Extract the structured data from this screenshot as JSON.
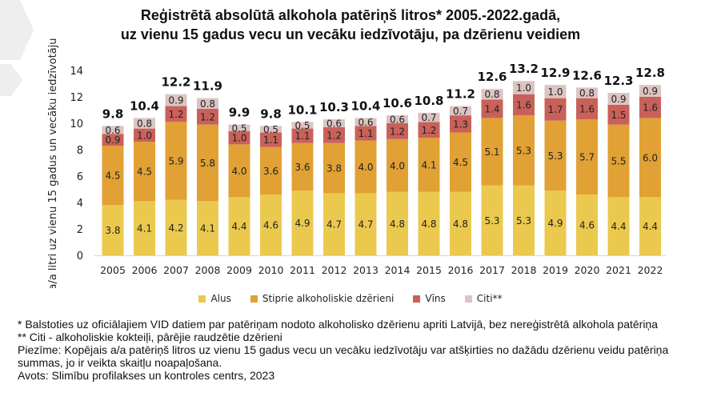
{
  "title_lines": [
    "Reģistrētā absolūtā alkohola patēriņš litros* 2005.-2022.gadā,",
    "uz vienu 15 gadus vecu un vecāku iedzīvotāju, pa dzērienu veidiem"
  ],
  "chart_data": {
    "type": "bar",
    "stacked": true,
    "title": "Reģistrētā absolūtā alkohola patēriņš litros* 2005.-2022.gadā, uz vienu 15 gadus vecu un vecāku iedzīvotāju, pa dzērienu veidiem",
    "xlabel": "",
    "ylabel": "a/a litri uz vienu 15 gadus un vecāku iedzīvotāju",
    "ylim": [
      0,
      14
    ],
    "yticks": [
      0,
      2,
      4,
      6,
      8,
      10,
      12,
      14
    ],
    "grid": false,
    "legend_position": "bottom",
    "categories": [
      "2005",
      "2006",
      "2007",
      "2008",
      "2009",
      "2010",
      "2011",
      "2012",
      "2013",
      "2014",
      "2015",
      "2016",
      "2017",
      "2018",
      "2019",
      "2020",
      "2021",
      "2022"
    ],
    "series": [
      {
        "name": "Alus",
        "color": "#ebc94f",
        "values": [
          3.8,
          4.1,
          4.2,
          4.1,
          4.4,
          4.6,
          4.9,
          4.7,
          4.7,
          4.8,
          4.8,
          4.8,
          5.3,
          5.3,
          4.9,
          4.6,
          4.4,
          4.4
        ]
      },
      {
        "name": "Stiprie alkoholiskie dzērieni",
        "color": "#e1a134",
        "values": [
          4.5,
          4.5,
          5.9,
          5.8,
          4.0,
          3.6,
          3.6,
          3.8,
          4.0,
          4.0,
          4.1,
          4.5,
          5.1,
          5.3,
          5.3,
          5.7,
          5.5,
          6.0
        ]
      },
      {
        "name": "Vīns",
        "color": "#c9615a",
        "values": [
          0.9,
          1.0,
          1.2,
          1.2,
          1.0,
          1.1,
          1.1,
          1.2,
          1.1,
          1.2,
          1.2,
          1.3,
          1.4,
          1.6,
          1.7,
          1.6,
          1.5,
          1.6
        ]
      },
      {
        "name": "Citi**",
        "color": "#dcc4c2",
        "values": [
          0.6,
          0.8,
          0.9,
          0.8,
          0.5,
          0.5,
          0.5,
          0.6,
          0.6,
          0.6,
          0.7,
          0.7,
          0.8,
          1.0,
          1.0,
          0.8,
          0.9,
          0.9
        ]
      }
    ],
    "totals": [
      9.8,
      10.4,
      12.2,
      11.9,
      9.9,
      9.8,
      10.1,
      10.3,
      10.4,
      10.6,
      10.8,
      11.2,
      12.6,
      13.2,
      12.9,
      12.6,
      12.3,
      12.8
    ]
  },
  "notes": [
    "* Balstoties uz oficiālajiem VID datiem par patēriņam nodoto alkoholisko dzērienu apriti Latvijā, bez nereģistrētā alkohola patēriņa",
    "** Citi - alkoholiskie kokteiļi, pārējie raudzētie dzērieni",
    "Piezīme: Kopējais a/a patēriņš litros uz vienu 15 gadus vecu un vecāku iedzīvotāju var atšķirties no dažādu dzērienu veidu patēriņa summas, jo ir veikta skaitļu noapaļošana.",
    "Avots: Slimību profilakses un kontroles centrs, 2023"
  ]
}
